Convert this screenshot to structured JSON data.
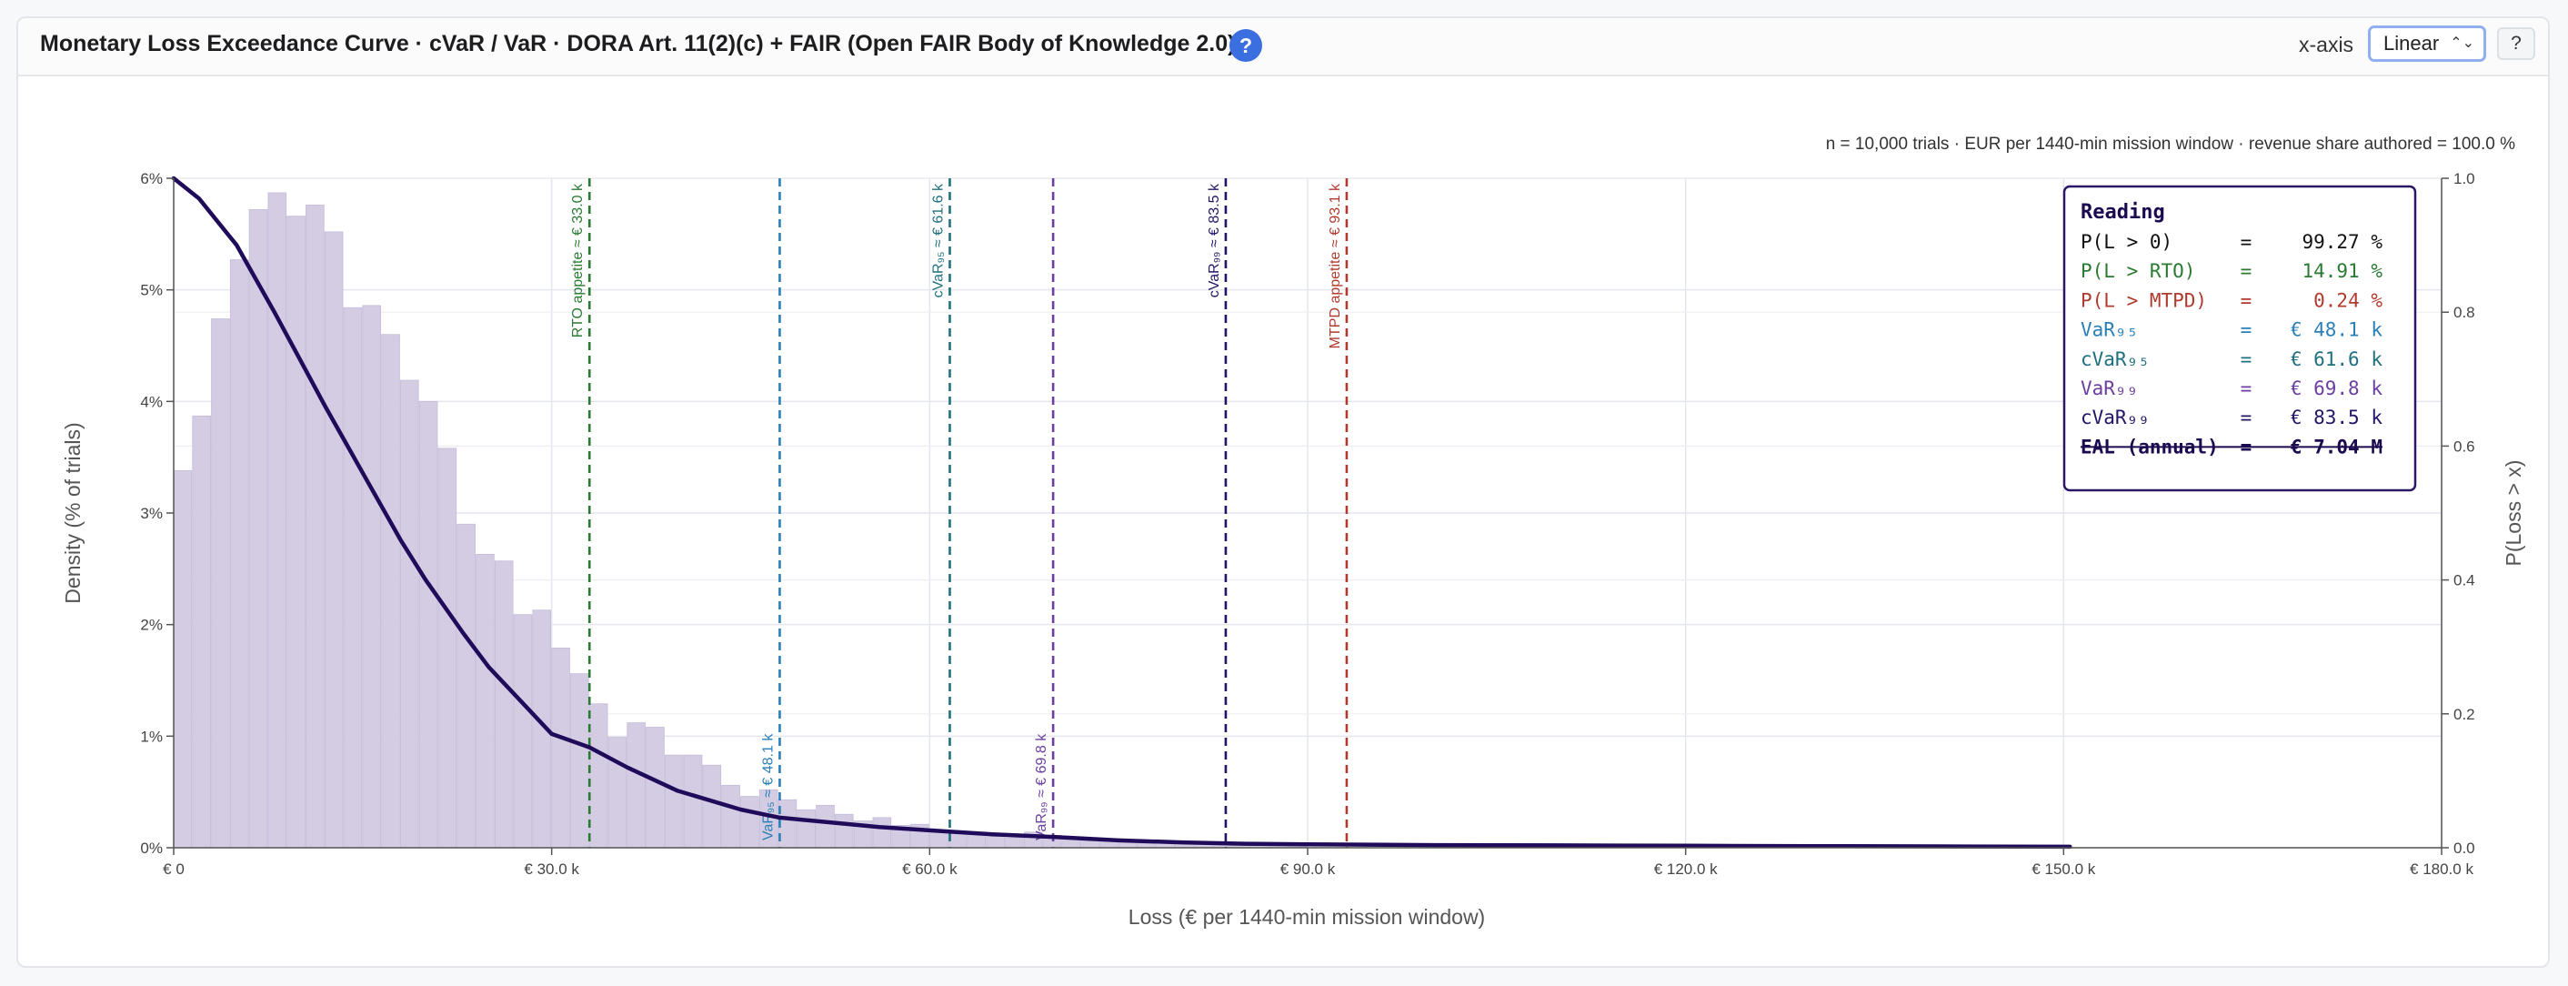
{
  "header": {
    "title": "Monetary Loss Exceedance Curve · cVaR / VaR · DORA Art. 11(2)(c) + FAIR (Open FAIR Body of Knowledge 2.0)",
    "help_glyph": "?",
    "xaxis_label": "x-axis",
    "xaxis_selected": "Linear",
    "help_button": "?"
  },
  "chart_data": {
    "type": "bar",
    "note": "n = 10,000 trials · EUR per 1440-min mission window · revenue share authored = 100.0 %",
    "xlabel": "Loss (€ per 1440-min mission window)",
    "ylabel_left": "Density (% of trials)",
    "ylabel_right": "P(Loss > x)",
    "xlim": [
      0,
      180000
    ],
    "ylim_left": [
      0,
      6
    ],
    "ylim_right": [
      0,
      1
    ],
    "x_ticks": [
      {
        "value": 0,
        "label": "€ 0"
      },
      {
        "value": 30000,
        "label": "€ 30.0 k"
      },
      {
        "value": 60000,
        "label": "€ 60.0 k"
      },
      {
        "value": 90000,
        "label": "€ 90.0 k"
      },
      {
        "value": 120000,
        "label": "€ 120.0 k"
      },
      {
        "value": 150000,
        "label": "€ 150.0 k"
      },
      {
        "value": 180000,
        "label": "€ 180.0 k"
      }
    ],
    "y_ticks_left": [
      {
        "value": 0,
        "label": "0%"
      },
      {
        "value": 1,
        "label": "1%"
      },
      {
        "value": 2,
        "label": "2%"
      },
      {
        "value": 3,
        "label": "3%"
      },
      {
        "value": 4,
        "label": "4%"
      },
      {
        "value": 5,
        "label": "5%"
      },
      {
        "value": 6,
        "label": "6%"
      }
    ],
    "y_ticks_right": [
      {
        "value": 0,
        "label": "0.0"
      },
      {
        "value": 0.2,
        "label": "0.2"
      },
      {
        "value": 0.4,
        "label": "0.4"
      },
      {
        "value": 0.6,
        "label": "0.6"
      },
      {
        "value": 0.8,
        "label": "0.8"
      },
      {
        "value": 1.0,
        "label": "1.0"
      }
    ],
    "grid": true,
    "histogram": {
      "bin_width": 1500,
      "start": 0,
      "values": [
        3.38,
        3.87,
        4.74,
        5.27,
        5.72,
        5.87,
        5.66,
        5.76,
        5.52,
        4.84,
        4.86,
        4.6,
        4.19,
        4.0,
        3.58,
        2.9,
        2.63,
        2.57,
        2.09,
        2.13,
        1.79,
        1.56,
        1.29,
        0.99,
        1.12,
        1.08,
        0.83,
        0.83,
        0.74,
        0.56,
        0.46,
        0.52,
        0.43,
        0.34,
        0.38,
        0.3,
        0.24,
        0.27,
        0.2,
        0.21,
        0.15,
        0.14,
        0.14,
        0.1,
        0.09,
        0.14,
        0.11,
        0.08,
        0.06,
        0.07,
        0.05,
        0.04,
        0.04,
        0.04,
        0.03,
        0.03,
        0.02,
        0.02,
        0.02,
        0.02
      ]
    },
    "exceedance_curve": {
      "color": "#1f0b5a",
      "x": [
        0,
        2000,
        5000,
        8000,
        10000,
        12000,
        15000,
        18000,
        20000,
        23000,
        25000,
        28000,
        30000,
        33000,
        36000,
        40000,
        45000,
        48100,
        52000,
        56000,
        60000,
        65000,
        70000,
        75000,
        80000,
        85000,
        90000,
        100000,
        110000,
        120000,
        130000,
        140000,
        150500
      ],
      "y": [
        1.0,
        0.97,
        0.9,
        0.8,
        0.73,
        0.66,
        0.56,
        0.46,
        0.4,
        0.32,
        0.27,
        0.21,
        0.17,
        0.15,
        0.12,
        0.085,
        0.057,
        0.045,
        0.038,
        0.031,
        0.026,
        0.02,
        0.016,
        0.011,
        0.008,
        0.006,
        0.005,
        0.004,
        0.0035,
        0.003,
        0.0025,
        0.002,
        0.0015
      ]
    },
    "vlines": [
      {
        "x": 33000,
        "label": "RTO appetite ≈ € 33.0 k",
        "color": "#2a7a33",
        "label_pos": "top"
      },
      {
        "x": 48100,
        "label": "VaR₉₅ ≈ € 48.1 k",
        "color": "#2a7fb7",
        "label_pos": "bottom"
      },
      {
        "x": 61600,
        "label": "cVaR₉₅ ≈ € 61.6 k",
        "color": "#1f6f7e",
        "label_pos": "top"
      },
      {
        "x": 69800,
        "label": "VaR₉₉ ≈ € 69.8 k",
        "color": "#6a3fa0",
        "label_pos": "bottom"
      },
      {
        "x": 83500,
        "label": "cVaR₉₉ ≈ € 83.5 k",
        "color": "#241466",
        "label_pos": "top"
      },
      {
        "x": 93100,
        "label": "MTPD appetite ≈ € 93.1 k",
        "color": "#b03a2e",
        "label_pos": "top"
      }
    ],
    "reading": {
      "title": "Reading",
      "rows": [
        {
          "label": "P(L > 0)",
          "value": "99.27 %",
          "color": "#111111"
        },
        {
          "label": "P(L > RTO)",
          "value": "14.91 %",
          "color": "#2a7a33"
        },
        {
          "label": "P(L > MTPD)",
          "value": "0.24 %",
          "color": "#b03a2e"
        },
        {
          "label": "VaR₉₅",
          "value": "€ 48.1 k",
          "color": "#2a7fb7"
        },
        {
          "label": "cVaR₉₅",
          "value": "€ 61.6 k",
          "color": "#1f6f7e"
        },
        {
          "label": "VaR₉₉",
          "value": "€ 69.8 k",
          "color": "#6a3fa0"
        },
        {
          "label": "cVaR₉₉",
          "value": "€ 83.5 k",
          "color": "#241466"
        },
        {
          "label": "EAL (annual)",
          "value": "€ 7.04 M",
          "color": "#1c0a50",
          "strike": true
        }
      ]
    }
  }
}
